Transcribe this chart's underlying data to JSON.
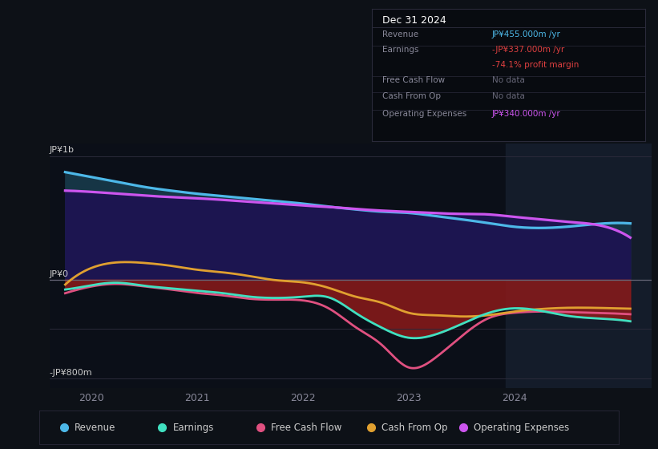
{
  "bg_color": "#0d1117",
  "chart_bg": "#0b0f18",
  "ylabel_top": "JP¥1b",
  "ylabel_bottom": "-JP¥800m",
  "ylabel_zero": "JP¥0",
  "xlim_start": 2019.6,
  "xlim_end": 2025.3,
  "ylim": [
    -880,
    1100
  ],
  "highlight_start": 2023.92,
  "revenue_color": "#4db8e8",
  "earnings_color": "#40e0c0",
  "fcf_color": "#e05080",
  "cashop_color": "#e0a030",
  "opex_color": "#cc55ee",
  "x": [
    2019.75,
    2020.0,
    2020.25,
    2020.5,
    2020.75,
    2021.0,
    2021.25,
    2021.5,
    2021.75,
    2022.0,
    2022.25,
    2022.5,
    2022.75,
    2023.0,
    2023.25,
    2023.5,
    2023.75,
    2024.0,
    2024.25,
    2024.5,
    2024.75,
    2025.1
  ],
  "revenue": [
    870,
    830,
    790,
    750,
    720,
    695,
    675,
    655,
    635,
    615,
    590,
    568,
    550,
    540,
    515,
    488,
    458,
    428,
    418,
    428,
    448,
    455
  ],
  "opex": [
    720,
    710,
    695,
    680,
    668,
    658,
    645,
    630,
    615,
    600,
    588,
    572,
    558,
    548,
    538,
    532,
    528,
    508,
    488,
    468,
    448,
    340
  ],
  "earnings": [
    -80,
    -45,
    -25,
    -50,
    -70,
    -90,
    -110,
    -138,
    -148,
    -138,
    -145,
    -270,
    -390,
    -470,
    -445,
    -360,
    -272,
    -232,
    -252,
    -292,
    -312,
    -337
  ],
  "fcf": [
    -110,
    -55,
    -35,
    -55,
    -80,
    -108,
    -128,
    -155,
    -162,
    -168,
    -235,
    -385,
    -530,
    -710,
    -635,
    -460,
    -315,
    -268,
    -258,
    -262,
    -268,
    -280
  ],
  "cashop": [
    -40,
    95,
    140,
    135,
    112,
    80,
    58,
    28,
    -5,
    -22,
    -68,
    -138,
    -188,
    -268,
    -288,
    -298,
    -288,
    -258,
    -238,
    -228,
    -228,
    -235
  ],
  "legend": [
    {
      "label": "Revenue",
      "color": "#4db8e8"
    },
    {
      "label": "Earnings",
      "color": "#40e0c0"
    },
    {
      "label": "Free Cash Flow",
      "color": "#e05080"
    },
    {
      "label": "Cash From Op",
      "color": "#e0a030"
    },
    {
      "label": "Operating Expenses",
      "color": "#cc55ee"
    }
  ],
  "infobox_title": "Dec 31 2024",
  "infobox_rows": [
    {
      "label": "Revenue",
      "value": "JP¥455.000m /yr",
      "value_color": "#4db8e8",
      "sep": true
    },
    {
      "label": "Earnings",
      "value": "-JP¥337.000m /yr",
      "value_color": "#e04040",
      "sep": false
    },
    {
      "label": "",
      "value": "-74.1% profit margin",
      "value_color": "#e04040",
      "sep": true
    },
    {
      "label": "Free Cash Flow",
      "value": "No data",
      "value_color": "#666677",
      "sep": true
    },
    {
      "label": "Cash From Op",
      "value": "No data",
      "value_color": "#666677",
      "sep": true
    },
    {
      "label": "Operating Expenses",
      "value": "JP¥340.000m /yr",
      "value_color": "#cc55ee",
      "sep": false
    }
  ]
}
